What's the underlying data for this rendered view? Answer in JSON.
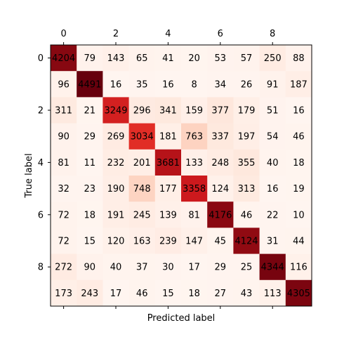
{
  "chart_data": {
    "type": "heatmap",
    "colormap": "Reds",
    "xlabel": "Predicted label",
    "ylabel": "True label",
    "x_ticks": [
      0,
      2,
      4,
      6,
      8
    ],
    "y_ticks": [
      0,
      2,
      4,
      6,
      8
    ],
    "x_tick_position": "top",
    "categories": [
      0,
      1,
      2,
      3,
      4,
      5,
      6,
      7,
      8,
      9
    ],
    "matrix": [
      [
        4204,
        79,
        143,
        65,
        41,
        20,
        53,
        57,
        250,
        88
      ],
      [
        96,
        4491,
        16,
        35,
        16,
        8,
        34,
        26,
        91,
        187
      ],
      [
        311,
        21,
        3249,
        296,
        341,
        159,
        377,
        179,
        51,
        16
      ],
      [
        90,
        29,
        269,
        3034,
        181,
        763,
        337,
        197,
        54,
        46
      ],
      [
        81,
        11,
        232,
        201,
        3681,
        133,
        248,
        355,
        40,
        18
      ],
      [
        32,
        23,
        190,
        748,
        177,
        3358,
        124,
        313,
        16,
        19
      ],
      [
        72,
        18,
        191,
        245,
        139,
        81,
        4176,
        46,
        22,
        10
      ],
      [
        72,
        15,
        120,
        163,
        239,
        147,
        45,
        4124,
        31,
        44
      ],
      [
        272,
        90,
        40,
        37,
        30,
        17,
        29,
        25,
        4344,
        116
      ],
      [
        173,
        243,
        17,
        46,
        15,
        18,
        27,
        43,
        113,
        4305
      ]
    ],
    "vmin": 8,
    "vmax": 4491,
    "grid": false
  }
}
